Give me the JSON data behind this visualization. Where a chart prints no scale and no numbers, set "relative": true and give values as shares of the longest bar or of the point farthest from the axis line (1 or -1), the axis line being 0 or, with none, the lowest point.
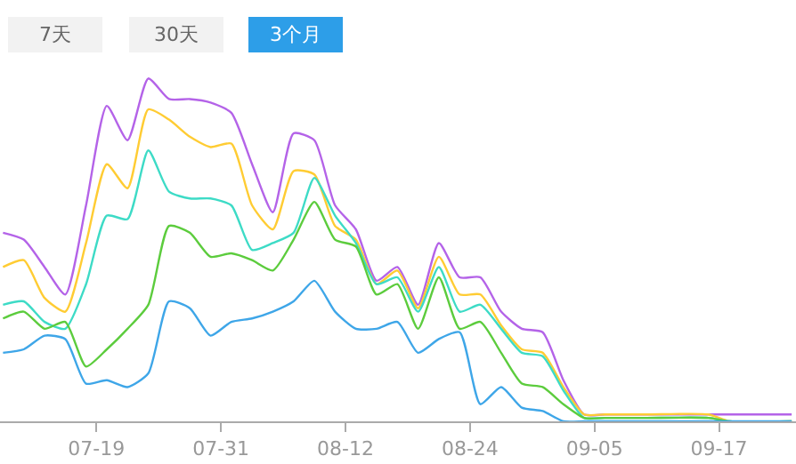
{
  "chart_data": {
    "type": "line",
    "relative": true,
    "marker": "none",
    "annotations": [
      "7天",
      "30天",
      "3个月"
    ],
    "x": [
      "--07-10",
      "--07-12",
      "--07-14",
      "--07-16",
      "--07-18",
      "--07-20",
      "--07-22",
      "--07-24",
      "--07-26",
      "--07-28",
      "--07-30",
      "--08-01",
      "--08-03",
      "--08-05",
      "--08-07",
      "--08-09",
      "--08-11",
      "--08-13",
      "--08-15",
      "--08-17",
      "--08-19",
      "--08-21",
      "--08-23",
      "--08-25",
      "--08-27",
      "--08-29",
      "--08-31",
      "--09-02",
      "--09-04",
      "--09-06",
      "--09-10",
      "--09-16",
      "--09-18",
      "--09-24"
    ],
    "xlim": [
      "--07-09T17:00",
      "--09-24T10:00"
    ],
    "xticks": [
      {
        "value": "--07-19",
        "label": "07-19"
      },
      {
        "value": "--07-31",
        "label": "07-31"
      },
      {
        "value": "--08-12",
        "label": "08-12"
      },
      {
        "value": "--08-24",
        "label": "08-24"
      },
      {
        "value": "--09-05",
        "label": "09-05"
      },
      {
        "value": "--09-17",
        "label": "09-17"
      }
    ],
    "series": [
      {
        "color": "#b463e8",
        "values": [
          0.55,
          0.53,
          0.45,
          0.37,
          0.63,
          0.92,
          0.82,
          1.0,
          0.94,
          0.94,
          0.93,
          0.9,
          0.75,
          0.61,
          0.84,
          0.82,
          0.63,
          0.56,
          0.41,
          0.45,
          0.34,
          0.52,
          0.42,
          0.42,
          0.32,
          0.27,
          0.26,
          0.12,
          0.02,
          0.02,
          0.02,
          0.02,
          0.02,
          0.02
        ]
      },
      {
        "color": "#ffcc33",
        "values": [
          0.45,
          0.47,
          0.36,
          0.32,
          0.52,
          0.75,
          0.68,
          0.91,
          0.88,
          0.83,
          0.8,
          0.81,
          0.63,
          0.56,
          0.73,
          0.72,
          0.57,
          0.53,
          0.4,
          0.44,
          0.33,
          0.48,
          0.37,
          0.37,
          0.28,
          0.21,
          0.2,
          0.1,
          0.02,
          0.02,
          0.02,
          0.02,
          0.0,
          0.0
        ]
      },
      {
        "color": "#3ddbc6",
        "values": [
          0.34,
          0.35,
          0.29,
          0.27,
          0.4,
          0.6,
          0.59,
          0.79,
          0.67,
          0.65,
          0.65,
          0.63,
          0.5,
          0.52,
          0.55,
          0.71,
          0.6,
          0.52,
          0.4,
          0.42,
          0.32,
          0.45,
          0.32,
          0.34,
          0.27,
          0.2,
          0.19,
          0.09,
          0.01,
          0.01,
          0.01,
          0.01,
          0.0,
          0.0
        ]
      },
      {
        "color": "#5ccc3d",
        "values": [
          0.3,
          0.32,
          0.27,
          0.29,
          0.16,
          0.21,
          0.27,
          0.34,
          0.57,
          0.55,
          0.48,
          0.49,
          0.47,
          0.44,
          0.53,
          0.64,
          0.53,
          0.51,
          0.37,
          0.4,
          0.27,
          0.42,
          0.27,
          0.29,
          0.2,
          0.11,
          0.1,
          0.05,
          0.01,
          0.01,
          0.01,
          0.01,
          0.0,
          0.0
        ]
      },
      {
        "color": "#3ea6e8",
        "values": [
          0.2,
          0.21,
          0.25,
          0.24,
          0.11,
          0.12,
          0.1,
          0.14,
          0.35,
          0.33,
          0.25,
          0.29,
          0.3,
          0.32,
          0.35,
          0.41,
          0.32,
          0.27,
          0.27,
          0.29,
          0.2,
          0.24,
          0.26,
          0.05,
          0.1,
          0.04,
          0.03,
          0.0,
          0.0,
          0.0,
          0.0,
          0.0,
          0.0,
          0.0
        ]
      }
    ]
  }
}
